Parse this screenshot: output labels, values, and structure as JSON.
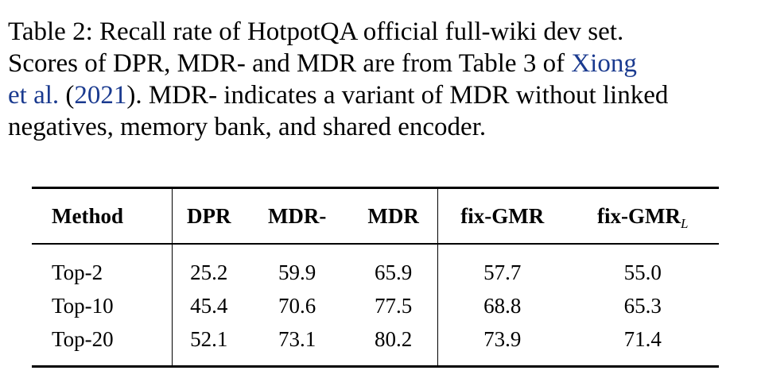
{
  "caption": {
    "label": "Table 2:",
    "line1_rest": "Recall rate of HotpotQA official full-wiki dev set.",
    "line2_main": "Scores of DPR, MDR- and MDR are from Table 3 of",
    "line2_link": "Xiong",
    "line3_link_a": "et al.",
    "line3_paren_open": "(",
    "line3_link_year": "2021",
    "line3_rest": "). MDR- indicates a variant of MDR without linked",
    "line4": "negatives, memory bank, and shared encoder."
  },
  "table": {
    "headers": [
      "Method",
      "DPR",
      "MDR-",
      "MDR",
      "fix-GMR",
      "fix-GMR"
    ],
    "last_header_subscript": "L",
    "rows": [
      [
        "Top-2",
        "25.2",
        "59.9",
        "65.9",
        "57.7",
        "55.0"
      ],
      [
        "Top-10",
        "45.4",
        "70.6",
        "77.5",
        "68.8",
        "65.3"
      ],
      [
        "Top-20",
        "52.1",
        "73.1",
        "80.2",
        "73.9",
        "71.4"
      ]
    ]
  },
  "colors": {
    "link": "#1a3a8f",
    "text": "#000000"
  }
}
